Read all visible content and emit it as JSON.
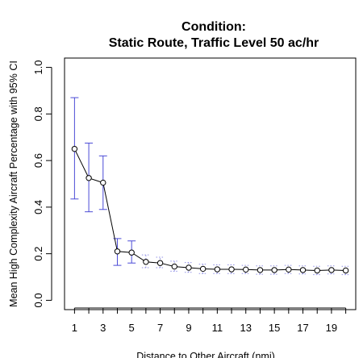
{
  "chart_data": {
    "type": "line",
    "title_line1": "Condition:",
    "title_line2": "Static Route, Traffic Level 50 ac/hr",
    "xlabel": "Distance to Other Aircraft (nmi)",
    "ylabel": "Mean High Complexity Aircraft Percentage with 95% CI",
    "xlim": [
      0.3,
      20.7
    ],
    "ylim": [
      -0.04,
      1.04
    ],
    "x_ticks": [
      1,
      3,
      5,
      7,
      9,
      11,
      13,
      15,
      17,
      19
    ],
    "y_ticks": [
      "0.0",
      "0.2",
      "0.4",
      "0.6",
      "0.8",
      "1.0"
    ],
    "grid": false,
    "series": [
      {
        "x": [
          1,
          2,
          3,
          4,
          5,
          6,
          7,
          8,
          9,
          10,
          11,
          12,
          13,
          14,
          15,
          16,
          17,
          18,
          19,
          20
        ],
        "y": [
          0.65,
          0.525,
          0.505,
          0.21,
          0.205,
          0.165,
          0.16,
          0.145,
          0.14,
          0.135,
          0.133,
          0.133,
          0.132,
          0.13,
          0.13,
          0.132,
          0.13,
          0.128,
          0.13,
          0.128
        ],
        "ci_lower": [
          0.435,
          0.38,
          0.39,
          0.15,
          0.16,
          0.14,
          0.14,
          0.125,
          0.12,
          0.115,
          0.115,
          0.115,
          0.115,
          0.112,
          0.112,
          0.115,
          0.113,
          0.11,
          0.113,
          0.11
        ],
        "ci_upper": [
          0.87,
          0.675,
          0.62,
          0.265,
          0.255,
          0.195,
          0.185,
          0.168,
          0.162,
          0.155,
          0.152,
          0.152,
          0.15,
          0.148,
          0.148,
          0.15,
          0.148,
          0.146,
          0.148,
          0.146
        ]
      }
    ],
    "colors": {
      "line": "#000000",
      "error_bars": "#4b4bd6",
      "axes": "#000000"
    }
  }
}
